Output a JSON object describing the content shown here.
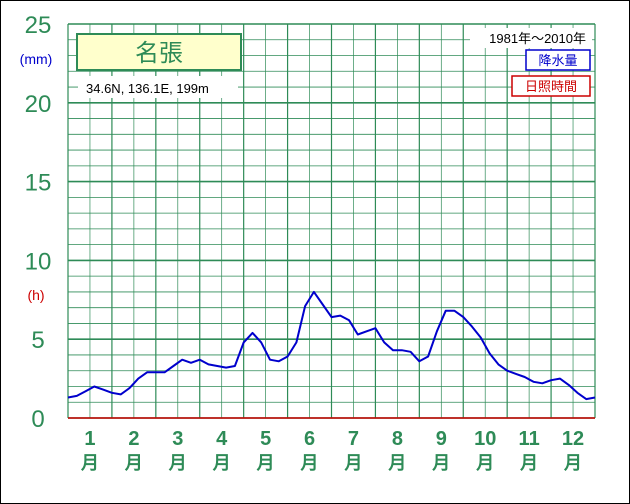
{
  "station": {
    "name": "名張",
    "location": "34.6N,  136.1E,  199m",
    "period": "1981年〜2010年"
  },
  "legend": {
    "precip_label": "降水量",
    "sunshine_label": "日照時間"
  },
  "axis": {
    "y_ticks": [
      "0",
      "5",
      "10",
      "15",
      "20",
      "25"
    ],
    "y_unit_precip": "(mm)",
    "y_unit_sunshine": "(h)",
    "month_numbers": [
      "1",
      "2",
      "3",
      "4",
      "5",
      "6",
      "7",
      "8",
      "9",
      "10",
      "11",
      "12"
    ],
    "month_suffix": "月"
  },
  "colors": {
    "grid": "#2e8b57",
    "axis_text": "#2e8b57",
    "precip": "#0000cc",
    "sunshine": "#cc0000",
    "title_bg": "#ffffcc"
  },
  "chart_data": {
    "type": "line",
    "title": "名張",
    "x_domain": [
      0,
      12
    ],
    "ylim": [
      0,
      25
    ],
    "grid": true,
    "series": [
      {
        "name": "降水量",
        "unit": "mm",
        "x": [
          0,
          0.2,
          0.4,
          0.6,
          0.8,
          1.0,
          1.2,
          1.4,
          1.6,
          1.8,
          2.0,
          2.2,
          2.4,
          2.6,
          2.8,
          3.0,
          3.2,
          3.4,
          3.6,
          3.8,
          4.0,
          4.2,
          4.4,
          4.6,
          4.8,
          5.0,
          5.2,
          5.4,
          5.6,
          5.8,
          6.0,
          6.2,
          6.4,
          6.6,
          6.8,
          7.0,
          7.2,
          7.4,
          7.6,
          7.8,
          8.0,
          8.2,
          8.4,
          8.6,
          8.8,
          9.0,
          9.2,
          9.4,
          9.6,
          9.8,
          10.0,
          10.2,
          10.4,
          10.6,
          10.8,
          11.0,
          11.2,
          11.4,
          11.6,
          11.8,
          12.0
        ],
        "values": [
          1.3,
          1.4,
          1.7,
          2.0,
          1.8,
          1.6,
          1.5,
          1.9,
          2.5,
          2.9,
          2.9,
          2.9,
          3.3,
          3.7,
          3.5,
          3.7,
          3.4,
          3.3,
          3.2,
          3.3,
          4.8,
          5.4,
          4.8,
          3.7,
          3.6,
          3.9,
          4.8,
          7.1,
          8.0,
          7.2,
          6.4,
          6.5,
          6.2,
          5.3,
          5.5,
          5.7,
          4.8,
          4.3,
          4.3,
          4.2,
          3.6,
          3.9,
          5.5,
          6.8,
          6.8,
          6.4,
          5.8,
          5.1,
          4.1,
          3.4,
          3.0,
          2.8,
          2.6,
          2.3,
          2.2,
          2.4,
          2.5,
          2.1,
          1.6,
          1.2,
          1.3
        ]
      },
      {
        "name": "日照時間",
        "unit": "h",
        "x": [
          0,
          12
        ],
        "values": [
          0,
          0
        ]
      }
    ]
  }
}
